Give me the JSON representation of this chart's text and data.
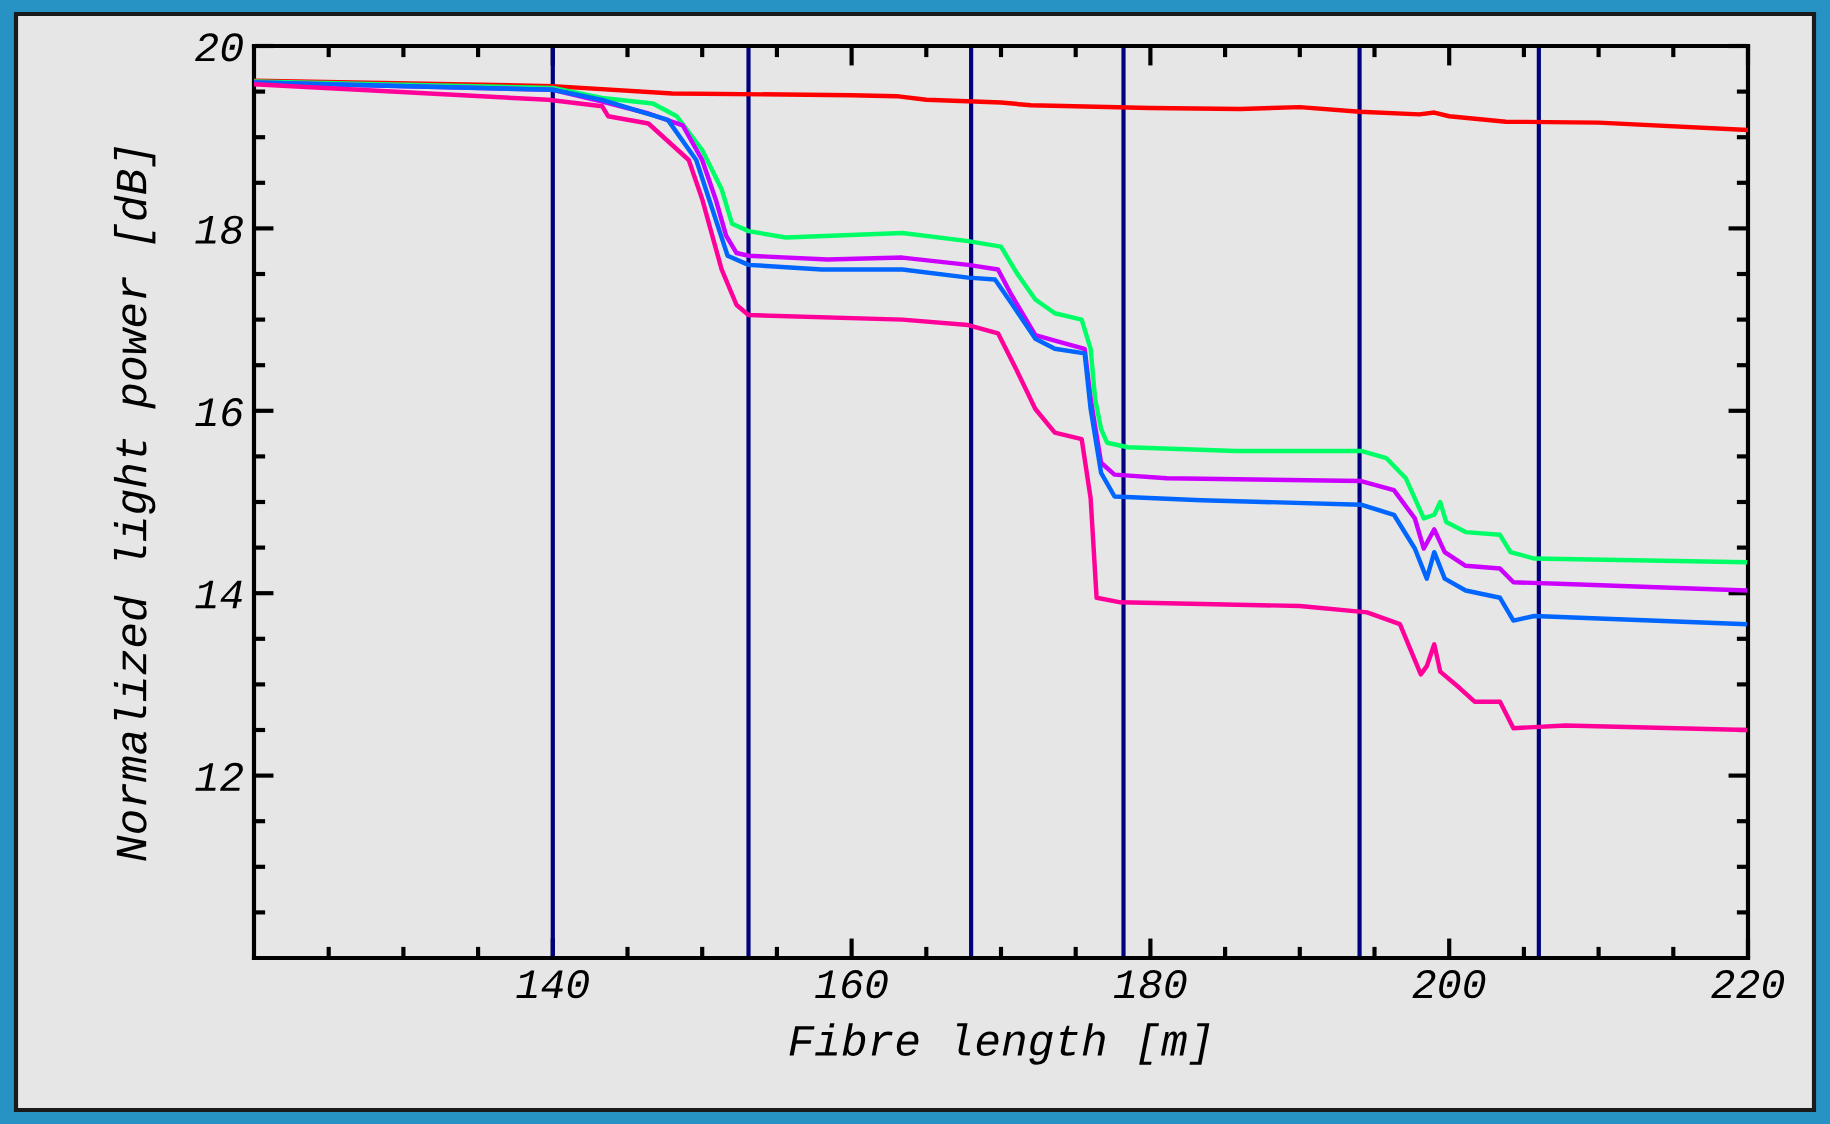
{
  "chart_data": {
    "type": "line",
    "xlabel": "Fibre length [m]",
    "ylabel": "Normalized light power [dB]",
    "xlim": [
      120,
      220
    ],
    "ylim": [
      10,
      20
    ],
    "xticks": [
      {
        "value": 125,
        "label": null
      },
      {
        "value": 130,
        "label": null
      },
      {
        "value": 135,
        "label": null
      },
      140,
      {
        "value": 145,
        "label": null
      },
      {
        "value": 150,
        "label": null
      },
      {
        "value": 155,
        "label": null
      },
      160,
      {
        "value": 165,
        "label": null
      },
      {
        "value": 170,
        "label": null
      },
      {
        "value": 175,
        "label": null
      },
      180,
      {
        "value": 185,
        "label": null
      },
      {
        "value": 190,
        "label": null
      },
      {
        "value": 195,
        "label": null
      },
      200,
      {
        "value": 205,
        "label": null
      },
      {
        "value": 210,
        "label": null
      },
      {
        "value": 215,
        "label": null
      },
      220
    ],
    "yticks": [
      {
        "value": 10.5,
        "label": null
      },
      {
        "value": 11,
        "label": null
      },
      {
        "value": 11.5,
        "label": null
      },
      12,
      {
        "value": 12.5,
        "label": null
      },
      {
        "value": 13,
        "label": null
      },
      {
        "value": 13.5,
        "label": null
      },
      14,
      {
        "value": 14.5,
        "label": null
      },
      {
        "value": 15,
        "label": null
      },
      {
        "value": 15.5,
        "label": null
      },
      16,
      {
        "value": 16.5,
        "label": null
      },
      {
        "value": 17,
        "label": null
      },
      {
        "value": 17.5,
        "label": null
      },
      18,
      {
        "value": 18.5,
        "label": null
      },
      {
        "value": 19,
        "label": null
      },
      {
        "value": 19.5,
        "label": null
      },
      20
    ],
    "line_style": "solid",
    "ref_lines": [
      {
        "axis": "x",
        "value": 140,
        "color": "#000080"
      },
      {
        "axis": "x",
        "value": 153.1,
        "color": "#000080"
      },
      {
        "axis": "x",
        "value": 168,
        "color": "#000080"
      },
      {
        "axis": "x",
        "value": 178.2,
        "color": "#000080"
      },
      {
        "axis": "x",
        "value": 194,
        "color": "#000080"
      },
      {
        "axis": "x",
        "value": 206,
        "color": "#000080"
      }
    ],
    "series": [
      {
        "color": "#ff0000",
        "x": [
          120,
          140,
          148,
          160,
          163,
          165,
          170,
          172,
          180,
          186,
          190,
          194,
          198,
          199,
          200,
          203.8,
          210,
          220
        ],
        "values": [
          19.62,
          19.56,
          19.48,
          19.46,
          19.45,
          19.41,
          19.38,
          19.35,
          19.32,
          19.31,
          19.33,
          19.28,
          19.25,
          19.27,
          19.23,
          19.17,
          19.16,
          19.08
        ]
      },
      {
        "color": "#00ff66",
        "x": [
          120,
          140,
          143.3,
          146.7,
          148.3,
          150,
          151.3,
          152,
          153.1,
          155.6,
          163.4,
          167.8,
          170,
          171.1,
          172.3,
          173.6,
          175.4,
          176,
          176.3,
          176.7,
          177.1,
          178.5,
          185.7,
          194.1,
          195.8,
          197.1,
          198.3,
          199,
          199.4,
          199.8,
          201.1,
          203.4,
          204.1,
          205.7,
          219.8
        ],
        "values": [
          19.61,
          19.54,
          19.43,
          19.37,
          19.23,
          18.86,
          18.43,
          18.05,
          17.97,
          17.9,
          17.95,
          17.86,
          17.8,
          17.5,
          17.22,
          17.07,
          17.0,
          16.68,
          16.13,
          15.8,
          15.65,
          15.6,
          15.56,
          15.56,
          15.48,
          15.26,
          14.82,
          14.86,
          15.0,
          14.78,
          14.67,
          14.64,
          14.45,
          14.38,
          14.34
        ]
      },
      {
        "color": "#cc00ff",
        "x": [
          120,
          140,
          143.3,
          146.4,
          148.7,
          150,
          150.9,
          151.6,
          152.3,
          153.1,
          158.4,
          163.4,
          167.8,
          169.8,
          170.7,
          172.3,
          173.6,
          175.6,
          176,
          176.7,
          177.6,
          181.1,
          194.1,
          196.3,
          197.7,
          198.3,
          199,
          199.7,
          201.1,
          203.4,
          204.3,
          207.8,
          219.8
        ],
        "values": [
          19.6,
          19.52,
          19.39,
          19.26,
          19.13,
          18.75,
          18.32,
          17.92,
          17.73,
          17.7,
          17.66,
          17.68,
          17.6,
          17.55,
          17.27,
          16.83,
          16.77,
          16.68,
          16.13,
          15.43,
          15.3,
          15.26,
          15.23,
          15.13,
          14.82,
          14.49,
          14.7,
          14.45,
          14.3,
          14.27,
          14.12,
          14.1,
          14.03
        ]
      },
      {
        "color": "#0066ff",
        "x": [
          120,
          140,
          143.3,
          147.7,
          149.6,
          150.9,
          151.7,
          153.1,
          158,
          163.4,
          167.8,
          169.6,
          170.7,
          172.3,
          173.6,
          175.6,
          176,
          176.7,
          177.6,
          183.4,
          194.1,
          196.3,
          197.7,
          198.5,
          199,
          199.7,
          201.1,
          203.4,
          204.3,
          205.7,
          219.8
        ],
        "values": [
          19.6,
          19.52,
          19.41,
          19.19,
          18.75,
          18.1,
          17.7,
          17.6,
          17.55,
          17.55,
          17.46,
          17.44,
          17.18,
          16.79,
          16.68,
          16.63,
          16.02,
          15.32,
          15.06,
          15.02,
          14.97,
          14.86,
          14.49,
          14.16,
          14.45,
          14.16,
          14.03,
          13.95,
          13.7,
          13.75,
          13.66
        ]
      },
      {
        "color": "#ff0099",
        "x": [
          120,
          139.7,
          143.3,
          143.7,
          146.4,
          149.1,
          150,
          151.3,
          152.3,
          153.1,
          163.4,
          167.8,
          169.8,
          171,
          172.3,
          173.6,
          175.4,
          176,
          176.4,
          178,
          190,
          194.5,
          196.7,
          198.1,
          198.5,
          199,
          199.4,
          200.7,
          201.7,
          203.4,
          204.3,
          207.8,
          219.8
        ],
        "values": [
          19.58,
          19.41,
          19.34,
          19.23,
          19.15,
          18.75,
          18.32,
          17.55,
          17.16,
          17.05,
          17.0,
          16.94,
          16.85,
          16.46,
          16.02,
          15.76,
          15.69,
          15.04,
          13.95,
          13.9,
          13.86,
          13.79,
          13.66,
          13.11,
          13.2,
          13.44,
          13.14,
          12.96,
          12.81,
          12.81,
          12.52,
          12.55,
          12.5
        ]
      }
    ]
  }
}
